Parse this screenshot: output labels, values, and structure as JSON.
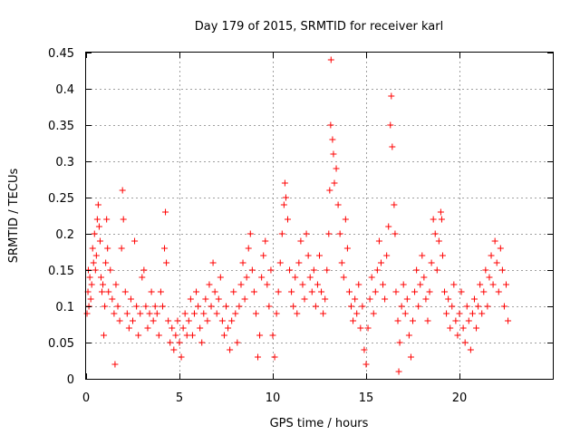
{
  "chart_data": {
    "type": "scatter",
    "title": "Day 179 of 2015, SRMTID for receiver karl",
    "xlabel": "GPS time / hours",
    "ylabel": "SRMTID / TECUs",
    "xlim": [
      0,
      25
    ],
    "ylim": [
      0,
      0.45
    ],
    "xticks": [
      0,
      5,
      10,
      15,
      20
    ],
    "xtick_labels": [
      "0",
      "5",
      "10",
      "15",
      "20"
    ],
    "yticks": [
      0,
      0.05,
      0.1,
      0.15,
      0.2,
      0.25,
      0.3,
      0.35,
      0.4,
      0.45
    ],
    "ytick_labels": [
      "0",
      "0.05",
      "0.1",
      "0.15",
      "0.2",
      "0.25",
      "0.3",
      "0.35",
      "0.4",
      "0.45"
    ],
    "grid": true,
    "marker": "plus",
    "color": "#ff0000",
    "series": [
      {
        "name": "SRMTID",
        "data_note": "dense per-epoch scatter; representative points estimated from the plot",
        "points": [
          [
            0.05,
            0.09
          ],
          [
            0.1,
            0.12
          ],
          [
            0.12,
            0.15
          ],
          [
            0.15,
            0.1
          ],
          [
            0.2,
            0.14
          ],
          [
            0.25,
            0.11
          ],
          [
            0.3,
            0.13
          ],
          [
            0.35,
            0.18
          ],
          [
            0.4,
            0.16
          ],
          [
            0.45,
            0.2
          ],
          [
            0.5,
            0.15
          ],
          [
            0.55,
            0.17
          ],
          [
            0.6,
            0.22
          ],
          [
            0.65,
            0.24
          ],
          [
            0.7,
            0.21
          ],
          [
            0.75,
            0.19
          ],
          [
            0.8,
            0.14
          ],
          [
            0.85,
            0.12
          ],
          [
            0.9,
            0.13
          ],
          [
            0.95,
            0.06
          ],
          [
            1.0,
            0.1
          ],
          [
            1.05,
            0.16
          ],
          [
            1.1,
            0.22
          ],
          [
            1.15,
            0.18
          ],
          [
            1.2,
            0.12
          ],
          [
            1.3,
            0.15
          ],
          [
            1.4,
            0.11
          ],
          [
            1.5,
            0.09
          ],
          [
            1.55,
            0.02
          ],
          [
            1.6,
            0.13
          ],
          [
            1.7,
            0.1
          ],
          [
            1.8,
            0.08
          ],
          [
            1.9,
            0.18
          ],
          [
            1.95,
            0.26
          ],
          [
            2.0,
            0.22
          ],
          [
            2.1,
            0.12
          ],
          [
            2.2,
            0.09
          ],
          [
            2.3,
            0.07
          ],
          [
            2.4,
            0.11
          ],
          [
            2.5,
            0.08
          ],
          [
            2.6,
            0.19
          ],
          [
            2.7,
            0.1
          ],
          [
            2.8,
            0.06
          ],
          [
            2.9,
            0.09
          ],
          [
            3.0,
            0.14
          ],
          [
            3.1,
            0.15
          ],
          [
            3.2,
            0.1
          ],
          [
            3.3,
            0.07
          ],
          [
            3.4,
            0.09
          ],
          [
            3.5,
            0.12
          ],
          [
            3.6,
            0.08
          ],
          [
            3.7,
            0.1
          ],
          [
            3.8,
            0.09
          ],
          [
            3.9,
            0.06
          ],
          [
            4.0,
            0.12
          ],
          [
            4.1,
            0.1
          ],
          [
            4.2,
            0.18
          ],
          [
            4.25,
            0.23
          ],
          [
            4.3,
            0.16
          ],
          [
            4.4,
            0.08
          ],
          [
            4.5,
            0.05
          ],
          [
            4.6,
            0.07
          ],
          [
            4.7,
            0.04
          ],
          [
            4.8,
            0.06
          ],
          [
            4.9,
            0.08
          ],
          [
            5.0,
            0.05
          ],
          [
            5.1,
            0.03
          ],
          [
            5.2,
            0.07
          ],
          [
            5.3,
            0.09
          ],
          [
            5.4,
            0.06
          ],
          [
            5.5,
            0.08
          ],
          [
            5.6,
            0.11
          ],
          [
            5.7,
            0.06
          ],
          [
            5.8,
            0.09
          ],
          [
            5.9,
            0.12
          ],
          [
            6.0,
            0.1
          ],
          [
            6.1,
            0.07
          ],
          [
            6.2,
            0.05
          ],
          [
            6.3,
            0.09
          ],
          [
            6.4,
            0.11
          ],
          [
            6.5,
            0.08
          ],
          [
            6.6,
            0.13
          ],
          [
            6.7,
            0.1
          ],
          [
            6.8,
            0.16
          ],
          [
            6.9,
            0.12
          ],
          [
            7.0,
            0.09
          ],
          [
            7.1,
            0.11
          ],
          [
            7.2,
            0.14
          ],
          [
            7.3,
            0.08
          ],
          [
            7.4,
            0.06
          ],
          [
            7.5,
            0.1
          ],
          [
            7.6,
            0.07
          ],
          [
            7.7,
            0.04
          ],
          [
            7.8,
            0.08
          ],
          [
            7.9,
            0.12
          ],
          [
            8.0,
            0.09
          ],
          [
            8.1,
            0.05
          ],
          [
            8.2,
            0.1
          ],
          [
            8.3,
            0.13
          ],
          [
            8.4,
            0.16
          ],
          [
            8.5,
            0.11
          ],
          [
            8.6,
            0.14
          ],
          [
            8.7,
            0.18
          ],
          [
            8.8,
            0.2
          ],
          [
            8.9,
            0.15
          ],
          [
            9.0,
            0.12
          ],
          [
            9.1,
            0.09
          ],
          [
            9.2,
            0.03
          ],
          [
            9.3,
            0.06
          ],
          [
            9.4,
            0.14
          ],
          [
            9.5,
            0.17
          ],
          [
            9.6,
            0.19
          ],
          [
            9.7,
            0.13
          ],
          [
            9.8,
            0.1
          ],
          [
            9.9,
            0.15
          ],
          [
            10.0,
            0.06
          ],
          [
            10.1,
            0.03
          ],
          [
            10.2,
            0.09
          ],
          [
            10.3,
            0.12
          ],
          [
            10.4,
            0.16
          ],
          [
            10.5,
            0.2
          ],
          [
            10.6,
            0.24
          ],
          [
            10.65,
            0.27
          ],
          [
            10.7,
            0.25
          ],
          [
            10.8,
            0.22
          ],
          [
            10.9,
            0.15
          ],
          [
            11.0,
            0.12
          ],
          [
            11.1,
            0.1
          ],
          [
            11.2,
            0.14
          ],
          [
            11.3,
            0.09
          ],
          [
            11.4,
            0.16
          ],
          [
            11.5,
            0.19
          ],
          [
            11.6,
            0.13
          ],
          [
            11.7,
            0.11
          ],
          [
            11.8,
            0.2
          ],
          [
            11.9,
            0.17
          ],
          [
            12.0,
            0.14
          ],
          [
            12.1,
            0.12
          ],
          [
            12.2,
            0.15
          ],
          [
            12.3,
            0.1
          ],
          [
            12.4,
            0.13
          ],
          [
            12.5,
            0.17
          ],
          [
            12.6,
            0.12
          ],
          [
            12.7,
            0.09
          ],
          [
            12.8,
            0.11
          ],
          [
            12.9,
            0.15
          ],
          [
            13.0,
            0.2
          ],
          [
            13.05,
            0.26
          ],
          [
            13.1,
            0.35
          ],
          [
            13.12,
            0.44
          ],
          [
            13.2,
            0.33
          ],
          [
            13.25,
            0.31
          ],
          [
            13.3,
            0.27
          ],
          [
            13.4,
            0.29
          ],
          [
            13.5,
            0.24
          ],
          [
            13.6,
            0.2
          ],
          [
            13.7,
            0.16
          ],
          [
            13.8,
            0.14
          ],
          [
            13.9,
            0.22
          ],
          [
            14.0,
            0.18
          ],
          [
            14.1,
            0.12
          ],
          [
            14.2,
            0.1
          ],
          [
            14.3,
            0.08
          ],
          [
            14.4,
            0.11
          ],
          [
            14.5,
            0.09
          ],
          [
            14.6,
            0.13
          ],
          [
            14.7,
            0.07
          ],
          [
            14.8,
            0.1
          ],
          [
            14.9,
            0.04
          ],
          [
            15.0,
            0.02
          ],
          [
            15.1,
            0.07
          ],
          [
            15.2,
            0.11
          ],
          [
            15.3,
            0.14
          ],
          [
            15.4,
            0.09
          ],
          [
            15.5,
            0.12
          ],
          [
            15.6,
            0.15
          ],
          [
            15.7,
            0.19
          ],
          [
            15.8,
            0.16
          ],
          [
            15.9,
            0.13
          ],
          [
            16.0,
            0.11
          ],
          [
            16.1,
            0.17
          ],
          [
            16.2,
            0.21
          ],
          [
            16.3,
            0.35
          ],
          [
            16.35,
            0.39
          ],
          [
            16.4,
            0.32
          ],
          [
            16.5,
            0.24
          ],
          [
            16.55,
            0.2
          ],
          [
            16.6,
            0.12
          ],
          [
            16.7,
            0.08
          ],
          [
            16.75,
            0.01
          ],
          [
            16.8,
            0.05
          ],
          [
            16.9,
            0.1
          ],
          [
            17.0,
            0.13
          ],
          [
            17.1,
            0.09
          ],
          [
            17.2,
            0.11
          ],
          [
            17.3,
            0.06
          ],
          [
            17.4,
            0.03
          ],
          [
            17.5,
            0.08
          ],
          [
            17.6,
            0.12
          ],
          [
            17.7,
            0.15
          ],
          [
            17.8,
            0.1
          ],
          [
            17.9,
            0.13
          ],
          [
            18.0,
            0.17
          ],
          [
            18.1,
            0.14
          ],
          [
            18.2,
            0.11
          ],
          [
            18.3,
            0.08
          ],
          [
            18.4,
            0.12
          ],
          [
            18.5,
            0.16
          ],
          [
            18.6,
            0.22
          ],
          [
            18.7,
            0.2
          ],
          [
            18.8,
            0.15
          ],
          [
            18.9,
            0.19
          ],
          [
            19.0,
            0.23
          ],
          [
            19.05,
            0.22
          ],
          [
            19.1,
            0.17
          ],
          [
            19.2,
            0.12
          ],
          [
            19.3,
            0.09
          ],
          [
            19.4,
            0.11
          ],
          [
            19.5,
            0.07
          ],
          [
            19.6,
            0.1
          ],
          [
            19.7,
            0.13
          ],
          [
            19.8,
            0.08
          ],
          [
            19.9,
            0.06
          ],
          [
            20.0,
            0.09
          ],
          [
            20.1,
            0.12
          ],
          [
            20.2,
            0.07
          ],
          [
            20.3,
            0.05
          ],
          [
            20.4,
            0.1
          ],
          [
            20.5,
            0.08
          ],
          [
            20.6,
            0.04
          ],
          [
            20.7,
            0.09
          ],
          [
            20.8,
            0.11
          ],
          [
            20.9,
            0.07
          ],
          [
            21.0,
            0.1
          ],
          [
            21.1,
            0.13
          ],
          [
            21.2,
            0.09
          ],
          [
            21.3,
            0.12
          ],
          [
            21.4,
            0.15
          ],
          [
            21.5,
            0.1
          ],
          [
            21.6,
            0.14
          ],
          [
            21.7,
            0.17
          ],
          [
            21.8,
            0.13
          ],
          [
            21.9,
            0.19
          ],
          [
            22.0,
            0.16
          ],
          [
            22.1,
            0.12
          ],
          [
            22.2,
            0.18
          ],
          [
            22.3,
            0.15
          ],
          [
            22.4,
            0.1
          ],
          [
            22.5,
            0.13
          ],
          [
            22.6,
            0.08
          ]
        ]
      }
    ]
  }
}
